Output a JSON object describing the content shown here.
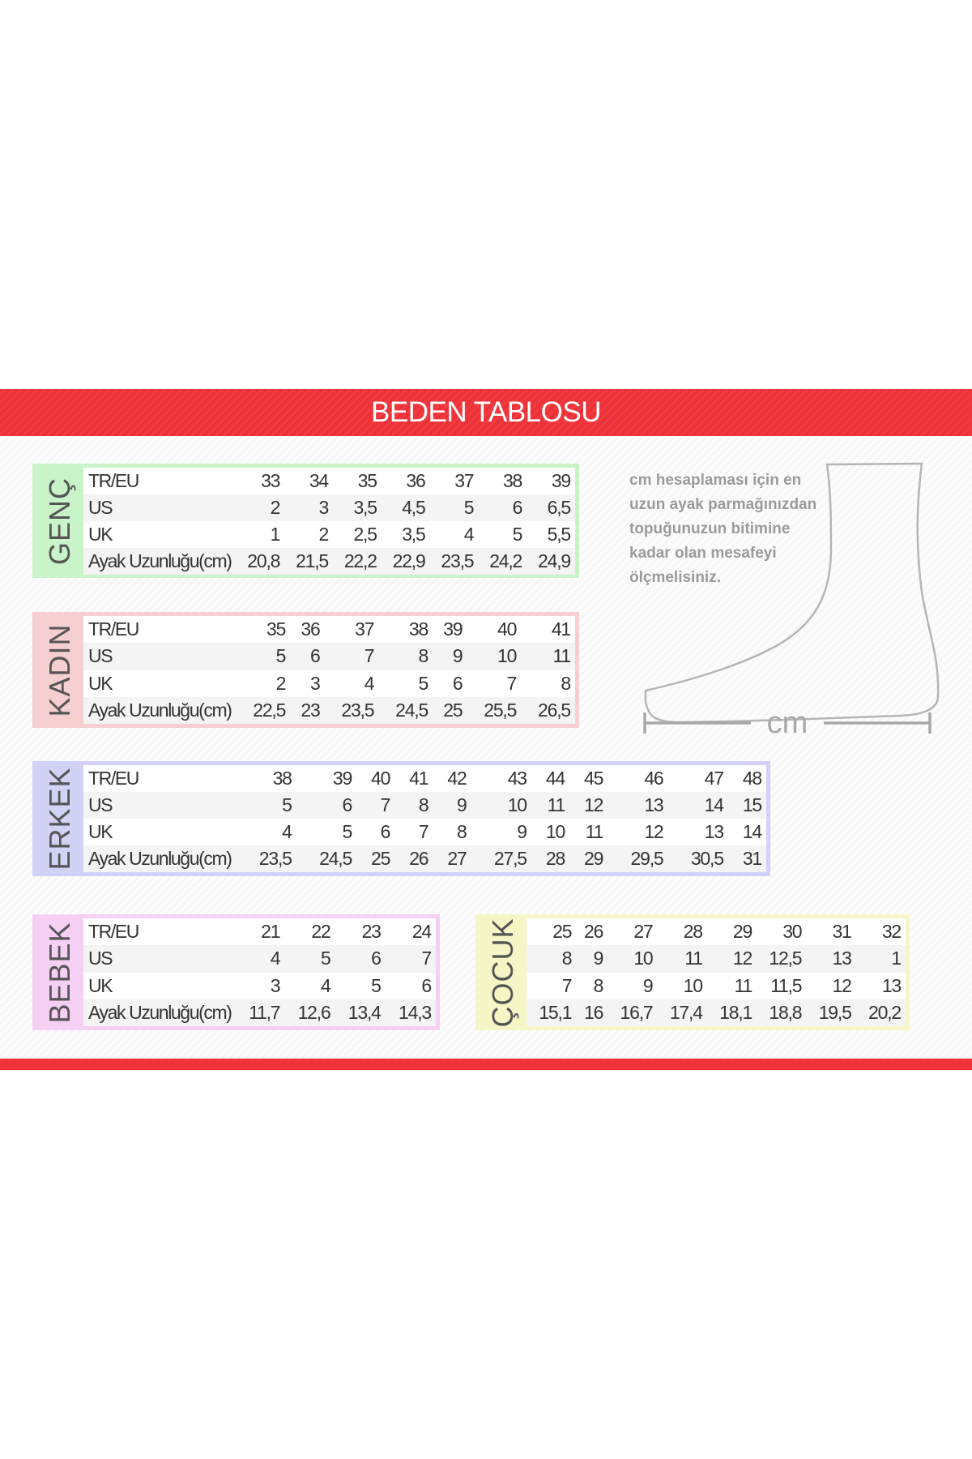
{
  "title": "BEDEN TABLOSU",
  "colors": {
    "accent": "#ee3338",
    "genc": "#c9f3c9",
    "kadin": "#f6cfd1",
    "erkek": "#d2d2f6",
    "bebek": "#f6d0f4",
    "cocuk": "#f5f5c6"
  },
  "note": {
    "lines": [
      "cm hesaplaması için en",
      "uzun ayak parmağınızdan",
      "topuğunuzun bitimine",
      "kadar olan mesafeyi",
      "ölçmelisiniz."
    ],
    "unit_label": "cm"
  },
  "tables": [
    {
      "label": "GENÇ",
      "color": "#c9f3c9",
      "rows": [
        {
          "name": "TR/EU",
          "values": [
            "33",
            "34",
            "35",
            "36",
            "37",
            "38",
            "39"
          ]
        },
        {
          "name": "US",
          "values": [
            "2",
            "3",
            "3,5",
            "4,5",
            "5",
            "6",
            "6,5"
          ]
        },
        {
          "name": "UK",
          "values": [
            "1",
            "2",
            "2,5",
            "3,5",
            "4",
            "5",
            "5,5"
          ]
        },
        {
          "name": "Ayak Uzunluğu(cm)",
          "values": [
            "20,8",
            "21,5",
            "22,2",
            "22,9",
            "23,5",
            "24,2",
            "24,9"
          ]
        }
      ]
    },
    {
      "label": "KADIN",
      "color": "#f6cfd1",
      "rows": [
        {
          "name": "TR/EU",
          "values": [
            "35",
            "36",
            "37",
            "38",
            "39",
            "40",
            "41"
          ]
        },
        {
          "name": "US",
          "values": [
            "5",
            "6",
            "7",
            "8",
            "9",
            "10",
            "11"
          ]
        },
        {
          "name": "UK",
          "values": [
            "2",
            "3",
            "4",
            "5",
            "6",
            "7",
            "8"
          ]
        },
        {
          "name": "Ayak Uzunluğu(cm)",
          "values": [
            "22,5",
            "23",
            "23,5",
            "24,5",
            "25",
            "25,5",
            "26,5"
          ]
        }
      ]
    },
    {
      "label": "ERKEK",
      "color": "#d2d2f6",
      "rows": [
        {
          "name": "TR/EU",
          "values": [
            "38",
            "39",
            "40",
            "41",
            "42",
            "43",
            "44",
            "45",
            "46",
            "47",
            "48"
          ]
        },
        {
          "name": "US",
          "values": [
            "5",
            "6",
            "7",
            "8",
            "9",
            "10",
            "11",
            "12",
            "13",
            "14",
            "15"
          ]
        },
        {
          "name": "UK",
          "values": [
            "4",
            "5",
            "6",
            "7",
            "8",
            "9",
            "10",
            "11",
            "12",
            "13",
            "14"
          ]
        },
        {
          "name": "Ayak Uzunluğu(cm)",
          "values": [
            "23,5",
            "24,5",
            "25",
            "26",
            "27",
            "27,5",
            "28",
            "29",
            "29,5",
            "30,5",
            "31"
          ]
        }
      ]
    },
    {
      "label": "BEBEK",
      "color": "#f6d0f4",
      "rows": [
        {
          "name": "TR/EU",
          "values": [
            "21",
            "22",
            "23",
            "24"
          ]
        },
        {
          "name": "US",
          "values": [
            "4",
            "5",
            "6",
            "7"
          ]
        },
        {
          "name": "UK",
          "values": [
            "3",
            "4",
            "5",
            "6"
          ]
        },
        {
          "name": "Ayak Uzunluğu(cm)",
          "values": [
            "11,7",
            "12,6",
            "13,4",
            "14,3"
          ]
        }
      ]
    },
    {
      "label": "ÇOCUK",
      "color": "#f5f5c6",
      "rows": [
        {
          "values": [
            "25",
            "26",
            "27",
            "28",
            "29",
            "30",
            "31",
            "32"
          ]
        },
        {
          "values": [
            "8",
            "9",
            "10",
            "11",
            "12",
            "12,5",
            "13",
            "1"
          ]
        },
        {
          "values": [
            "7",
            "8",
            "9",
            "10",
            "11",
            "11,5",
            "12",
            "13"
          ]
        },
        {
          "values": [
            "15,1",
            "16",
            "16,7",
            "17,4",
            "18,1",
            "18,8",
            "19,5",
            "20,2"
          ]
        }
      ]
    }
  ]
}
